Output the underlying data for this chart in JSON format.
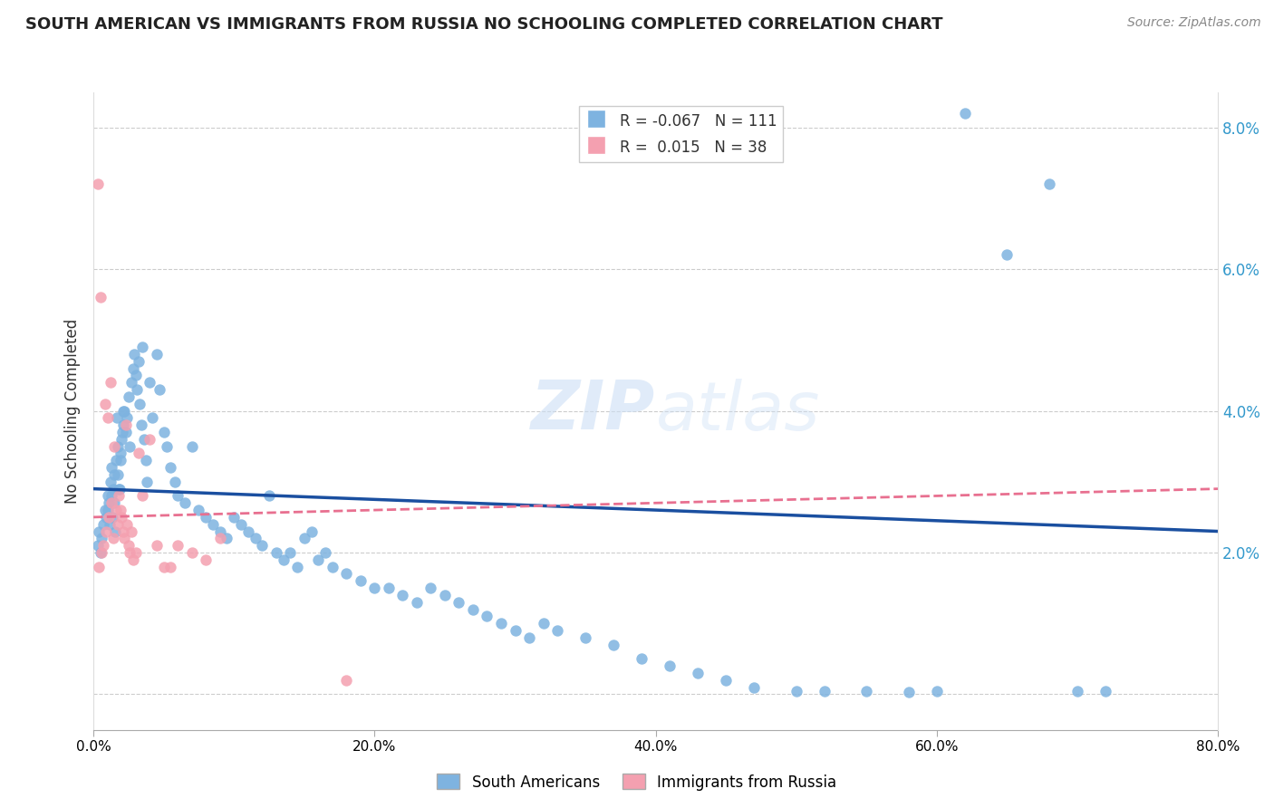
{
  "title": "SOUTH AMERICAN VS IMMIGRANTS FROM RUSSIA NO SCHOOLING COMPLETED CORRELATION CHART",
  "source": "Source: ZipAtlas.com",
  "ylabel": "No Schooling Completed",
  "yticks": [
    0.0,
    2.0,
    4.0,
    6.0,
    8.0
  ],
  "ytick_labels": [
    "",
    "2.0%",
    "4.0%",
    "6.0%",
    "8.0%"
  ],
  "xticks": [
    0.0,
    20.0,
    40.0,
    60.0,
    80.0
  ],
  "xlim": [
    0.0,
    80.0
  ],
  "ylim": [
    -0.5,
    8.5
  ],
  "legend_blue_r": "-0.067",
  "legend_blue_n": "111",
  "legend_pink_r": "0.015",
  "legend_pink_n": "38",
  "blue_color": "#7eb3e0",
  "pink_color": "#f4a0b0",
  "blue_line_color": "#1a4fa0",
  "pink_line_color": "#e87090",
  "watermark_zip": "ZIP",
  "watermark_atlas": "atlas",
  "blue_scatter_x": [
    0.3,
    0.4,
    0.5,
    0.6,
    0.7,
    0.8,
    0.9,
    1.0,
    1.1,
    1.2,
    1.3,
    1.4,
    1.5,
    1.6,
    1.7,
    1.8,
    1.9,
    2.0,
    2.1,
    2.2,
    2.3,
    2.4,
    2.5,
    2.6,
    2.7,
    2.8,
    2.9,
    3.0,
    3.1,
    3.2,
    3.3,
    3.4,
    3.5,
    3.6,
    3.7,
    3.8,
    4.0,
    4.2,
    4.5,
    4.7,
    5.0,
    5.2,
    5.5,
    5.8,
    6.0,
    6.5,
    7.0,
    7.5,
    8.0,
    8.5,
    9.0,
    9.5,
    10.0,
    10.5,
    11.0,
    11.5,
    12.0,
    12.5,
    13.0,
    13.5,
    14.0,
    14.5,
    15.0,
    15.5,
    16.0,
    16.5,
    17.0,
    18.0,
    19.0,
    20.0,
    21.0,
    22.0,
    23.0,
    24.0,
    25.0,
    26.0,
    27.0,
    28.0,
    29.0,
    30.0,
    31.0,
    32.0,
    33.0,
    35.0,
    37.0,
    39.0,
    41.0,
    43.0,
    45.0,
    47.0,
    50.0,
    52.0,
    55.0,
    58.0,
    60.0,
    62.0,
    65.0,
    68.0,
    70.0,
    72.0,
    1.05,
    1.15,
    1.25,
    1.35,
    1.45,
    1.55,
    1.65,
    1.75,
    1.85,
    1.95,
    2.05,
    2.15
  ],
  "blue_scatter_y": [
    2.1,
    2.3,
    2.0,
    2.2,
    2.4,
    2.6,
    2.5,
    2.8,
    2.7,
    3.0,
    3.2,
    2.9,
    3.1,
    3.3,
    3.5,
    2.9,
    3.4,
    3.6,
    3.8,
    4.0,
    3.7,
    3.9,
    4.2,
    3.5,
    4.4,
    4.6,
    4.8,
    4.5,
    4.3,
    4.7,
    4.1,
    3.8,
    4.9,
    3.6,
    3.3,
    3.0,
    4.4,
    3.9,
    4.8,
    4.3,
    3.7,
    3.5,
    3.2,
    3.0,
    2.8,
    2.7,
    3.5,
    2.6,
    2.5,
    2.4,
    2.3,
    2.2,
    2.5,
    2.4,
    2.3,
    2.2,
    2.1,
    2.8,
    2.0,
    1.9,
    2.0,
    1.8,
    2.2,
    2.3,
    1.9,
    2.0,
    1.8,
    1.7,
    1.6,
    1.5,
    1.5,
    1.4,
    1.3,
    1.5,
    1.4,
    1.3,
    1.2,
    1.1,
    1.0,
    0.9,
    0.8,
    1.0,
    0.9,
    0.8,
    0.7,
    0.5,
    0.4,
    0.3,
    0.2,
    0.1,
    0.05,
    0.05,
    0.04,
    0.03,
    0.05,
    8.2,
    6.2,
    7.2,
    0.05,
    0.05,
    2.6,
    2.4,
    2.8,
    2.5,
    2.7,
    2.3,
    3.9,
    3.1,
    2.9,
    3.3,
    3.7,
    4.0
  ],
  "pink_scatter_x": [
    0.3,
    0.4,
    0.5,
    0.6,
    0.7,
    0.8,
    0.9,
    1.0,
    1.1,
    1.2,
    1.3,
    1.4,
    1.5,
    1.6,
    1.7,
    1.8,
    1.9,
    2.0,
    2.1,
    2.2,
    2.3,
    2.4,
    2.5,
    2.6,
    2.7,
    2.8,
    3.0,
    3.2,
    3.5,
    4.0,
    4.5,
    5.0,
    5.5,
    6.0,
    7.0,
    8.0,
    9.0,
    18.0
  ],
  "pink_scatter_y": [
    7.2,
    1.8,
    5.6,
    2.0,
    2.1,
    4.1,
    2.3,
    3.9,
    2.5,
    4.4,
    2.7,
    2.2,
    3.5,
    2.6,
    2.4,
    2.8,
    2.6,
    2.5,
    2.3,
    2.2,
    3.8,
    2.4,
    2.1,
    2.0,
    2.3,
    1.9,
    2.0,
    3.4,
    2.8,
    3.6,
    2.1,
    1.8,
    1.8,
    2.1,
    2.0,
    1.9,
    2.2,
    0.2
  ],
  "blue_trend_x": [
    0.0,
    80.0
  ],
  "blue_trend_y_start": 2.9,
  "blue_trend_y_end": 2.3,
  "pink_trend_x": [
    0.0,
    80.0
  ],
  "pink_trend_y_start": 2.5,
  "pink_trend_y_end": 2.9
}
